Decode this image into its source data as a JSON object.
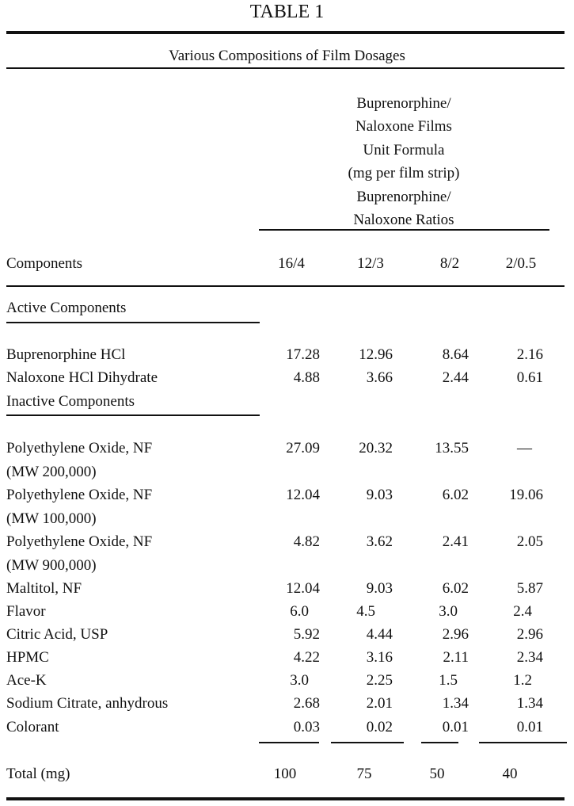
{
  "table": {
    "title": "TABLE 1",
    "caption": "Various Compositions of Film Dosages",
    "header_lines": [
      "Buprenorphine/",
      "Naloxone Films",
      "Unit Formula",
      "(mg per film strip)",
      "Buprenorphine/",
      "Naloxone Ratios"
    ],
    "components_label": "Components",
    "ratios": [
      "16/4",
      "12/3",
      "8/2",
      "2/0.5"
    ],
    "sections": {
      "active": "Active Components",
      "inactive": "Inactive Components"
    },
    "rows": [
      {
        "label": "Buprenorphine HCl",
        "values": [
          "17.28",
          "12.96",
          "8.64",
          "2.16"
        ]
      },
      {
        "label": "Naloxone HCl Dihydrate",
        "values": [
          "4.88",
          "3.66",
          "2.44",
          "0.61"
        ]
      },
      {
        "label": "Polyethylene Oxide, NF",
        "sub": "(MW 200,000)",
        "values": [
          "27.09",
          "20.32",
          "13.55",
          "—"
        ]
      },
      {
        "label": "Polyethylene Oxide, NF",
        "sub": "(MW 100,000)",
        "values": [
          "12.04",
          "9.03",
          "6.02",
          "19.06"
        ]
      },
      {
        "label": "Polyethylene Oxide, NF",
        "sub": "(MW 900,000)",
        "values": [
          "4.82",
          "3.62",
          "2.41",
          "2.05"
        ]
      },
      {
        "label": "Maltitol, NF",
        "values": [
          "12.04",
          "9.03",
          "6.02",
          "5.87"
        ]
      },
      {
        "label": "Flavor",
        "values": [
          "6.0",
          "4.5",
          "3.0",
          "2.4"
        ]
      },
      {
        "label": "Citric Acid, USP",
        "values": [
          "5.92",
          "4.44",
          "2.96",
          "2.96"
        ]
      },
      {
        "label": "HPMC",
        "values": [
          "4.22",
          "3.16",
          "2.11",
          "2.34"
        ]
      },
      {
        "label": "Ace-K",
        "values": [
          "3.0",
          "2.25",
          "1.5",
          "1.2"
        ]
      },
      {
        "label": "Sodium Citrate, anhydrous",
        "values": [
          "2.68",
          "2.01",
          "1.34",
          "1.34"
        ]
      },
      {
        "label": "Colorant",
        "values": [
          "0.03",
          "0.02",
          "0.01",
          "0.01"
        ]
      }
    ],
    "total": {
      "label": "Total (mg)",
      "values": [
        "100",
        "75",
        "50",
        "40"
      ]
    }
  }
}
